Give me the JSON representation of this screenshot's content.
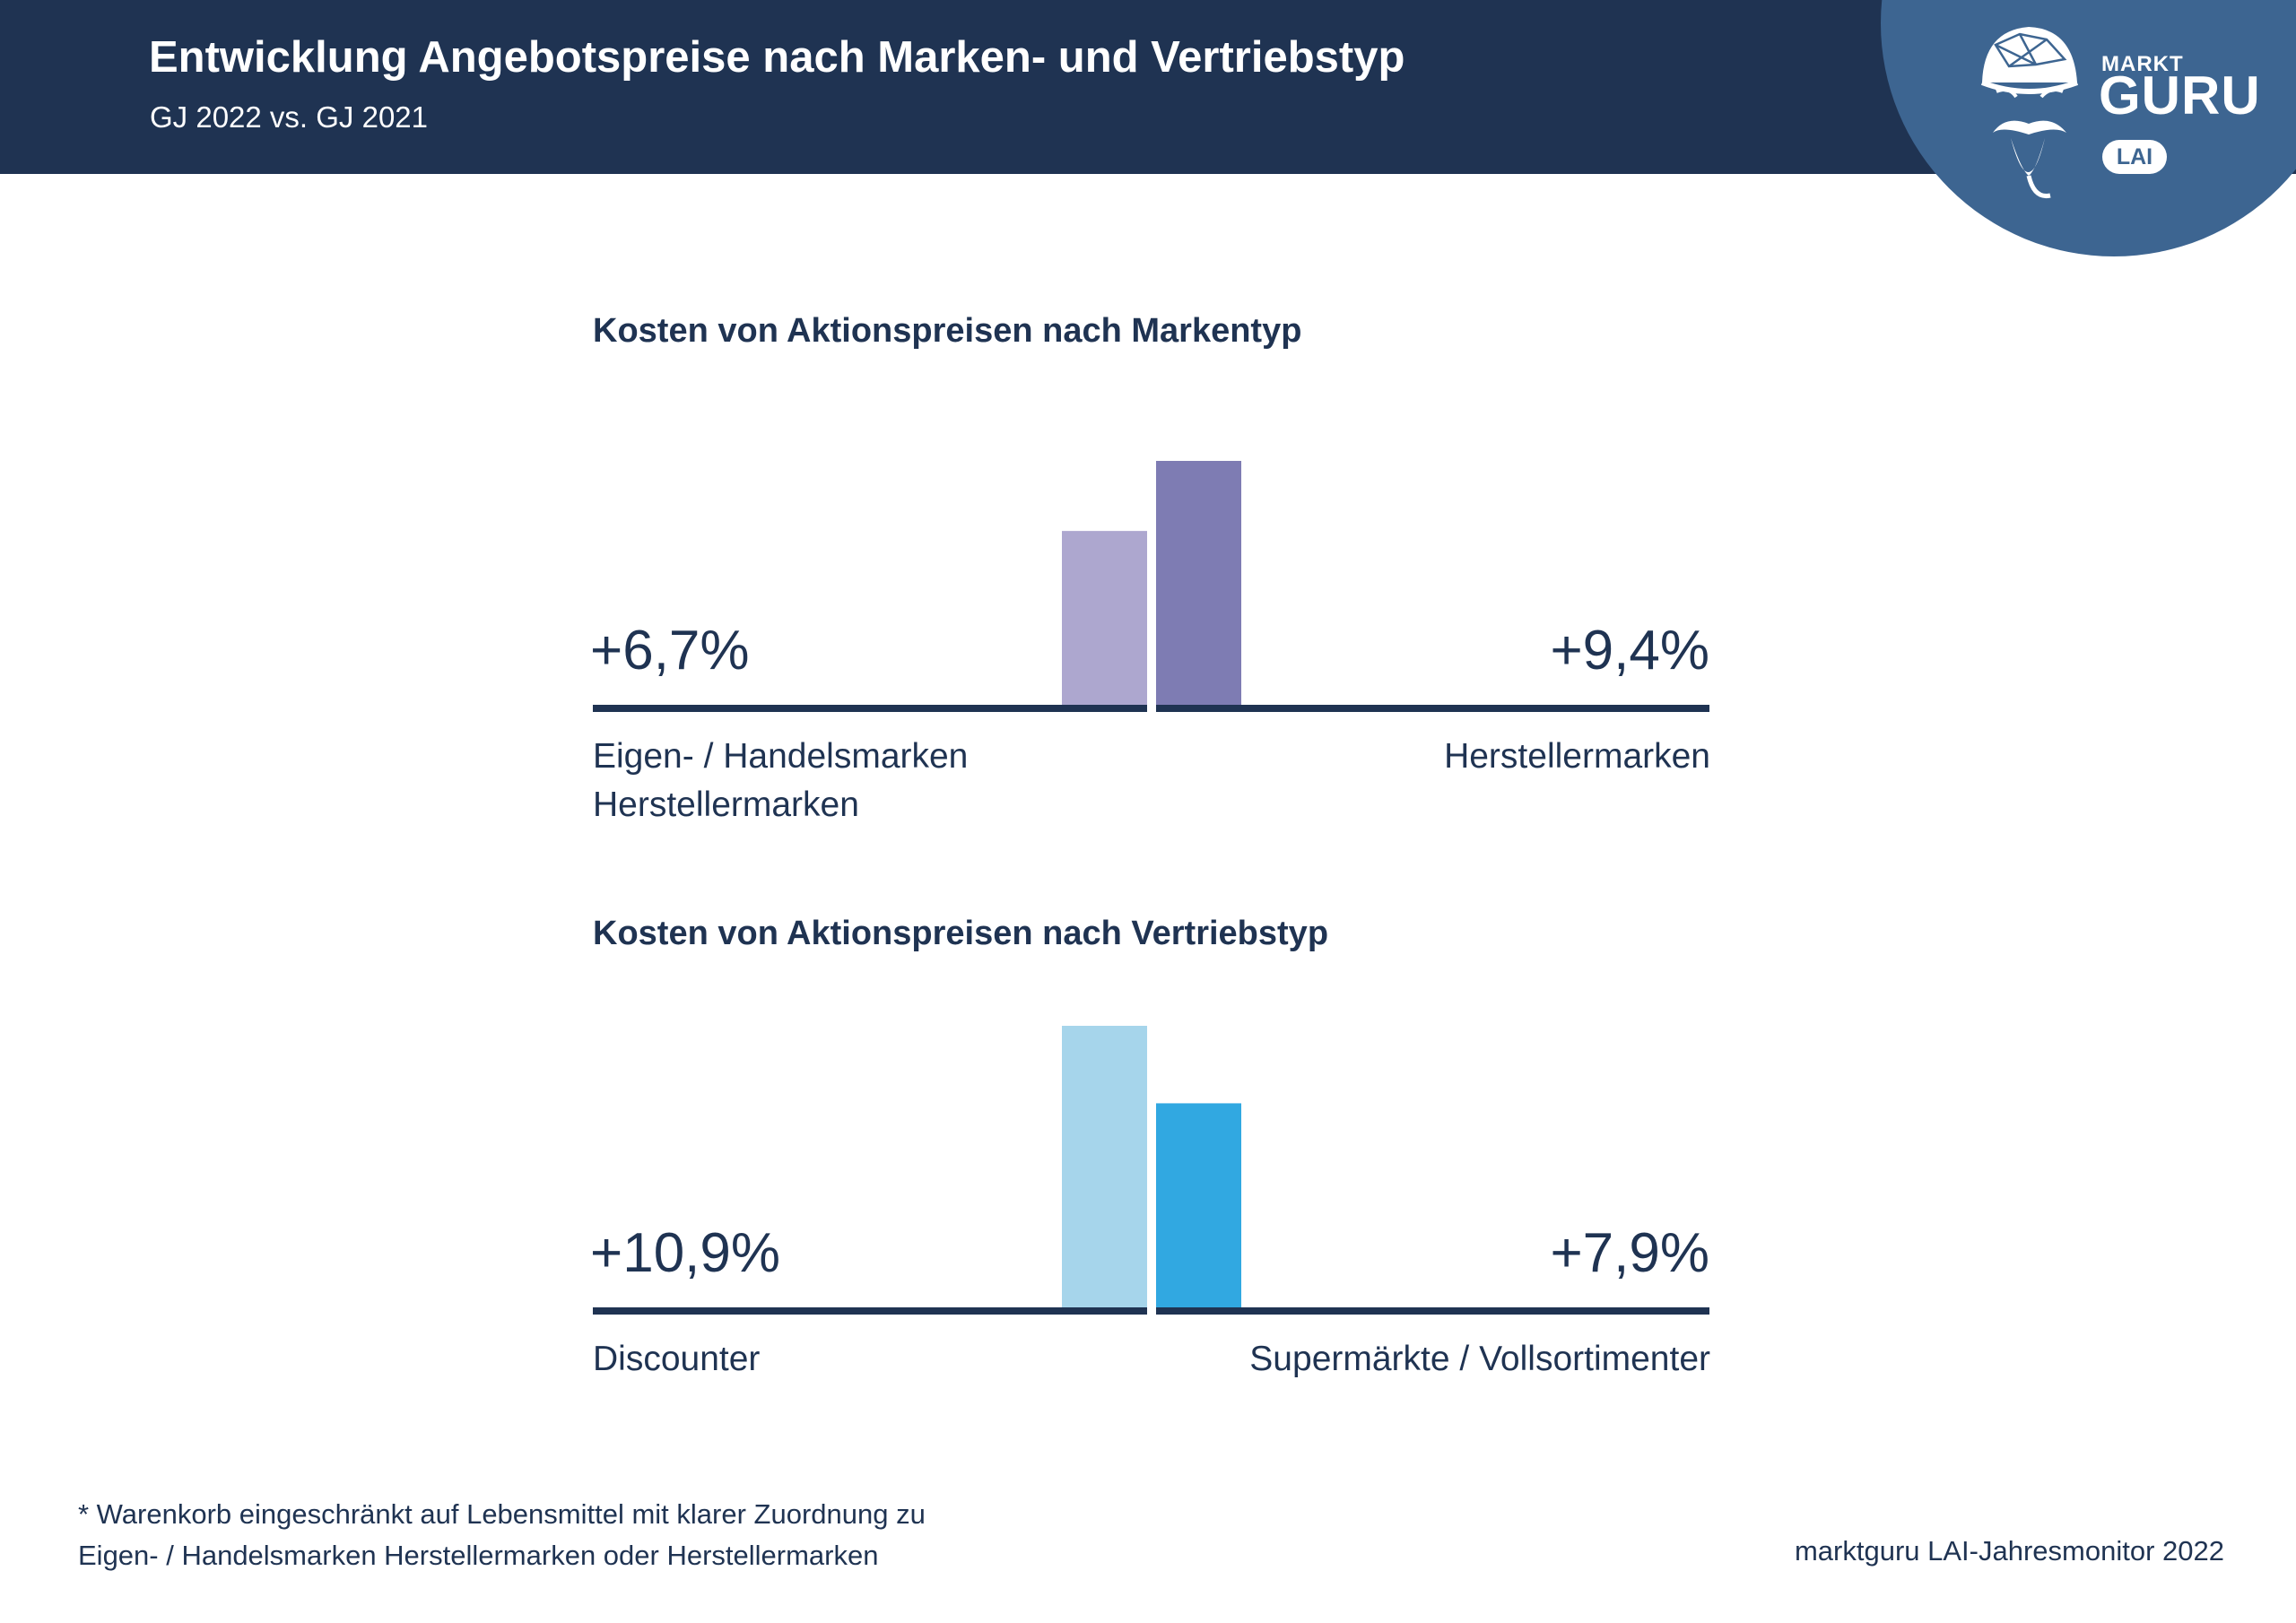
{
  "header": {
    "title": "Entwicklung Angebotspreise nach Marken- und Vertriebstyp",
    "subtitle": "GJ 2022 vs. GJ 2021"
  },
  "logo": {
    "small_word": "MARKT",
    "big_word": "GURU",
    "badge": "LAI",
    "icon": "guru-turban-face-icon",
    "color": "#3d6591"
  },
  "chart_data": [
    {
      "type": "bar",
      "title": "Kosten von Aktionspreisen nach Markentyp",
      "categories": [
        "Eigen- / Handelsmarken Herstellermarken",
        "Herstellermarken"
      ],
      "values": [
        6.7,
        9.4
      ],
      "value_labels": [
        "+6,7%",
        "+9,4%"
      ],
      "label_lines": [
        [
          "Eigen- / Handelsmarken",
          "Herstellermarken"
        ],
        [
          "Herstellermarken"
        ]
      ],
      "unit": "%",
      "colors": [
        "#ada7cf",
        "#7e7cb3"
      ],
      "ylim": [
        0,
        9.4
      ],
      "grid": false
    },
    {
      "type": "bar",
      "title": "Kosten von Aktionspreisen nach Vertriebstyp",
      "categories": [
        "Discounter",
        "Supermärkte / Vollsortimenter"
      ],
      "values": [
        10.9,
        7.9
      ],
      "value_labels": [
        "+10,9%",
        "+7,9%"
      ],
      "label_lines": [
        [
          "Discounter"
        ],
        [
          "Supermärkte / Vollsortimenter"
        ]
      ],
      "unit": "%",
      "colors": [
        "#a6d5eb",
        "#31a8e1"
      ],
      "ylim": [
        0,
        10.9
      ],
      "grid": false
    }
  ],
  "axis_color": "#1f3352",
  "footnote": {
    "line1": "* Warenkorb eingeschränkt auf Lebensmittel mit klarer Zuordnung zu",
    "line2": "Eigen- / Handelsmarken Herstellermarken oder Herstellermarken"
  },
  "source": "marktguru LAI-Jahresmonitor 2022"
}
